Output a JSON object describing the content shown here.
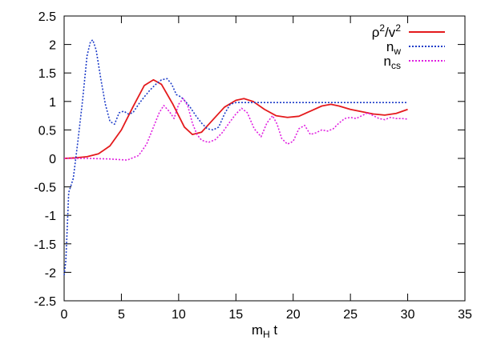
{
  "chart_data": {
    "type": "line",
    "title": "",
    "xlabel": {
      "main": "m",
      "sub": "H",
      "rest": " t"
    },
    "ylabel": "",
    "xlim": [
      0,
      35
    ],
    "ylim": [
      -2.5,
      2.5
    ],
    "xticks": [
      0,
      5,
      10,
      15,
      20,
      25,
      30,
      35
    ],
    "yticks": [
      -2.5,
      -2,
      -1.5,
      -1,
      -0.5,
      0,
      0.5,
      1,
      1.5,
      2,
      2.5
    ],
    "grid": false,
    "legend_position": "top-right",
    "series": [
      {
        "key": "rho",
        "name": "ρ2/v2",
        "label_parts": {
          "a": "ρ",
          "a_sup": "2",
          "b": "/v",
          "b_sup": "2"
        },
        "color": "#e41a1c",
        "style": "solid",
        "x": [
          0,
          1,
          2,
          3,
          4,
          5,
          6,
          7,
          7.8,
          8.5,
          9.5,
          10.5,
          11.2,
          12,
          13,
          14,
          15,
          15.7,
          16.5,
          17.5,
          18.5,
          19.5,
          20.5,
          21.5,
          22.5,
          23.3,
          24,
          25,
          26,
          27,
          28,
          29,
          30
        ],
        "y": [
          0,
          0.01,
          0.03,
          0.08,
          0.22,
          0.5,
          0.9,
          1.28,
          1.38,
          1.3,
          0.95,
          0.55,
          0.42,
          0.46,
          0.68,
          0.9,
          1.02,
          1.05,
          1.0,
          0.86,
          0.75,
          0.72,
          0.74,
          0.83,
          0.92,
          0.95,
          0.92,
          0.86,
          0.82,
          0.78,
          0.76,
          0.79,
          0.86
        ]
      },
      {
        "key": "nw",
        "name": "nw",
        "label_parts": {
          "a": "n",
          "a_sub": "w"
        },
        "color": "#1f3ec9",
        "style": "dotted",
        "x": [
          0,
          0.15,
          0.4,
          0.8,
          1.2,
          1.6,
          2.0,
          2.3,
          2.5,
          2.8,
          3.2,
          3.6,
          4.0,
          4.4,
          4.8,
          5.2,
          5.6,
          6.0,
          6.5,
          7.0,
          7.5,
          8.0,
          8.5,
          9.0,
          9.4,
          9.8,
          10.2,
          10.6,
          11.0,
          11.5,
          12.0,
          12.5,
          13.0,
          13.5,
          14.0,
          14.5,
          15.0,
          15.5,
          16,
          18,
          20,
          22,
          24,
          26,
          28,
          30
        ],
        "y": [
          -2.05,
          -1.8,
          -0.6,
          -0.35,
          0.3,
          1.0,
          1.8,
          2.05,
          2.08,
          1.9,
          1.4,
          0.95,
          0.65,
          0.6,
          0.8,
          0.83,
          0.78,
          0.8,
          0.95,
          1.08,
          1.2,
          1.3,
          1.38,
          1.4,
          1.3,
          1.12,
          1.08,
          1.0,
          0.9,
          0.75,
          0.62,
          0.52,
          0.5,
          0.55,
          0.78,
          0.95,
          0.98,
          0.98,
          0.98,
          0.98,
          0.98,
          0.98,
          0.98,
          0.98,
          0.98,
          0.98
        ]
      },
      {
        "key": "ncs",
        "name": "ncs",
        "label_parts": {
          "a": "n",
          "a_sub": "cs"
        },
        "color": "#e020e0",
        "style": "dotted",
        "x": [
          0,
          2,
          4,
          5.5,
          6.5,
          7.2,
          7.8,
          8.3,
          8.7,
          9.2,
          9.6,
          10.0,
          10.4,
          10.8,
          11.2,
          11.6,
          12.0,
          12.6,
          13.2,
          13.8,
          14.4,
          15.0,
          15.5,
          16.0,
          16.6,
          17.2,
          17.7,
          18.2,
          18.6,
          19.0,
          19.5,
          20.0,
          20.5,
          21.0,
          21.5,
          22.0,
          22.5,
          23.0,
          23.5,
          24.0,
          24.5,
          25.0,
          25.5,
          26.0,
          26.5,
          27.0,
          27.5,
          28.0,
          28.5,
          29.0,
          29.5,
          30.0
        ],
        "y": [
          0,
          0.0,
          -0.01,
          -0.03,
          0.05,
          0.25,
          0.55,
          0.8,
          0.93,
          0.82,
          0.7,
          0.95,
          1.05,
          0.92,
          0.62,
          0.42,
          0.32,
          0.28,
          0.33,
          0.45,
          0.62,
          0.78,
          0.88,
          0.8,
          0.52,
          0.38,
          0.62,
          0.75,
          0.6,
          0.35,
          0.25,
          0.3,
          0.52,
          0.58,
          0.42,
          0.45,
          0.5,
          0.48,
          0.52,
          0.62,
          0.7,
          0.72,
          0.7,
          0.75,
          0.8,
          0.75,
          0.7,
          0.68,
          0.72,
          0.7,
          0.7,
          0.69
        ]
      }
    ]
  }
}
